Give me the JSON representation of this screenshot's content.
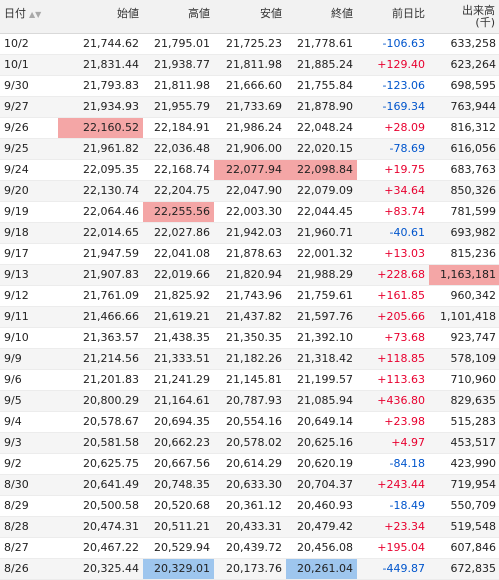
{
  "header": {
    "date": "日付",
    "sort_icon": "▲▼",
    "open": "始値",
    "high": "高値",
    "low": "安値",
    "close": "終値",
    "change": "前日比",
    "volume": "出来高",
    "volume_unit": "(千)"
  },
  "highlight_colors": {
    "red": "#f4a6a6",
    "blue": "#9ec6ee"
  },
  "rows": [
    {
      "date": "10/2",
      "open": "21,744.62",
      "high": "21,795.01",
      "low": "21,725.23",
      "close": "21,778.61",
      "change": "-106.63",
      "volume": "633,258"
    },
    {
      "date": "10/1",
      "open": "21,831.44",
      "high": "21,938.77",
      "low": "21,811.98",
      "close": "21,885.24",
      "change": "+129.40",
      "volume": "623,264"
    },
    {
      "date": "9/30",
      "open": "21,793.83",
      "high": "21,811.98",
      "low": "21,666.60",
      "close": "21,755.84",
      "change": "-123.06",
      "volume": "698,595"
    },
    {
      "date": "9/27",
      "open": "21,934.93",
      "high": "21,955.79",
      "low": "21,733.69",
      "close": "21,878.90",
      "change": "-169.34",
      "volume": "763,944"
    },
    {
      "date": "9/26",
      "open": "22,160.52",
      "high": "22,184.91",
      "low": "21,986.24",
      "close": "22,048.24",
      "change": "+28.09",
      "volume": "816,312",
      "hl": {
        "open": "red"
      }
    },
    {
      "date": "9/25",
      "open": "21,961.82",
      "high": "22,036.48",
      "low": "21,906.00",
      "close": "22,020.15",
      "change": "-78.69",
      "volume": "616,056"
    },
    {
      "date": "9/24",
      "open": "22,095.35",
      "high": "22,168.74",
      "low": "22,077.94",
      "close": "22,098.84",
      "change": "+19.75",
      "volume": "683,763",
      "hl": {
        "low": "red",
        "close": "red"
      }
    },
    {
      "date": "9/20",
      "open": "22,130.74",
      "high": "22,204.75",
      "low": "22,047.90",
      "close": "22,079.09",
      "change": "+34.64",
      "volume": "850,326"
    },
    {
      "date": "9/19",
      "open": "22,064.46",
      "high": "22,255.56",
      "low": "22,003.30",
      "close": "22,044.45",
      "change": "+83.74",
      "volume": "781,599",
      "hl": {
        "high": "red"
      }
    },
    {
      "date": "9/18",
      "open": "22,014.65",
      "high": "22,027.86",
      "low": "21,942.03",
      "close": "21,960.71",
      "change": "-40.61",
      "volume": "693,982"
    },
    {
      "date": "9/17",
      "open": "21,947.59",
      "high": "22,041.08",
      "low": "21,878.63",
      "close": "22,001.32",
      "change": "+13.03",
      "volume": "815,236"
    },
    {
      "date": "9/13",
      "open": "21,907.83",
      "high": "22,019.66",
      "low": "21,820.94",
      "close": "21,988.29",
      "change": "+228.68",
      "volume": "1,163,181",
      "hl": {
        "volume": "red"
      }
    },
    {
      "date": "9/12",
      "open": "21,761.09",
      "high": "21,825.92",
      "low": "21,743.96",
      "close": "21,759.61",
      "change": "+161.85",
      "volume": "960,342"
    },
    {
      "date": "9/11",
      "open": "21,466.66",
      "high": "21,619.21",
      "low": "21,437.82",
      "close": "21,597.76",
      "change": "+205.66",
      "volume": "1,101,418"
    },
    {
      "date": "9/10",
      "open": "21,363.57",
      "high": "21,438.35",
      "low": "21,350.35",
      "close": "21,392.10",
      "change": "+73.68",
      "volume": "923,747"
    },
    {
      "date": "9/9",
      "open": "21,214.56",
      "high": "21,333.51",
      "low": "21,182.26",
      "close": "21,318.42",
      "change": "+118.85",
      "volume": "578,109"
    },
    {
      "date": "9/6",
      "open": "21,201.83",
      "high": "21,241.29",
      "low": "21,145.81",
      "close": "21,199.57",
      "change": "+113.63",
      "volume": "710,960"
    },
    {
      "date": "9/5",
      "open": "20,800.29",
      "high": "21,164.61",
      "low": "20,787.93",
      "close": "21,085.94",
      "change": "+436.80",
      "volume": "829,635"
    },
    {
      "date": "9/4",
      "open": "20,578.67",
      "high": "20,694.35",
      "low": "20,554.16",
      "close": "20,649.14",
      "change": "+23.98",
      "volume": "515,283"
    },
    {
      "date": "9/3",
      "open": "20,581.58",
      "high": "20,662.23",
      "low": "20,578.02",
      "close": "20,625.16",
      "change": "+4.97",
      "volume": "453,517"
    },
    {
      "date": "9/2",
      "open": "20,625.75",
      "high": "20,667.56",
      "low": "20,614.29",
      "close": "20,620.19",
      "change": "-84.18",
      "volume": "423,990"
    },
    {
      "date": "8/30",
      "open": "20,641.49",
      "high": "20,748.35",
      "low": "20,633.30",
      "close": "20,704.37",
      "change": "+243.44",
      "volume": "719,954"
    },
    {
      "date": "8/29",
      "open": "20,500.58",
      "high": "20,520.68",
      "low": "20,361.12",
      "close": "20,460.93",
      "change": "-18.49",
      "volume": "550,709"
    },
    {
      "date": "8/28",
      "open": "20,474.31",
      "high": "20,511.21",
      "low": "20,433.31",
      "close": "20,479.42",
      "change": "+23.34",
      "volume": "519,548"
    },
    {
      "date": "8/27",
      "open": "20,467.22",
      "high": "20,529.94",
      "low": "20,439.72",
      "close": "20,456.08",
      "change": "+195.04",
      "volume": "607,846"
    },
    {
      "date": "8/26",
      "open": "20,325.44",
      "high": "20,329.01",
      "low": "20,173.76",
      "close": "20,261.04",
      "change": "-449.87",
      "volume": "672,835",
      "hl": {
        "high": "blue",
        "close": "blue"
      }
    }
  ]
}
